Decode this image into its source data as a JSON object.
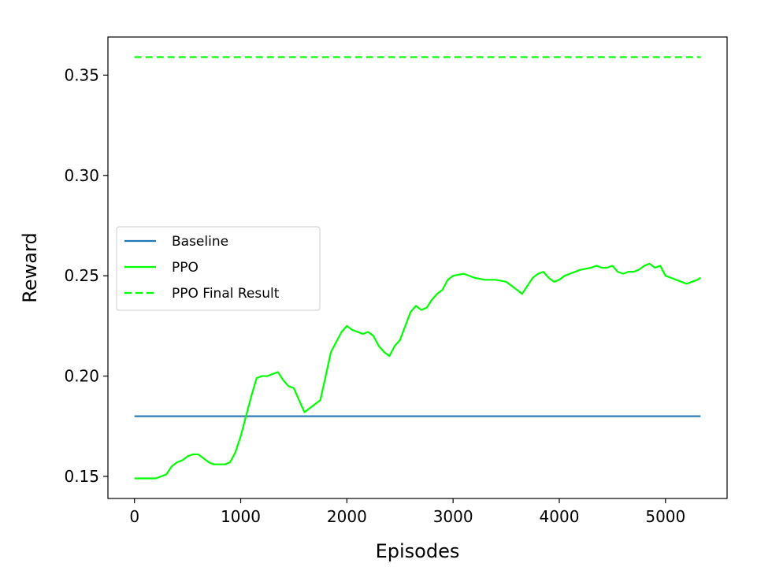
{
  "chart_data": {
    "type": "line",
    "title": "",
    "xlabel": "Episodes",
    "ylabel": "Reward",
    "xlim": [
      -250,
      5580
    ],
    "ylim": [
      0.139,
      0.369
    ],
    "xticks": [
      0,
      1000,
      2000,
      3000,
      4000,
      5000
    ],
    "xtick_labels": [
      "0",
      "1000",
      "2000",
      "3000",
      "4000",
      "5000"
    ],
    "yticks": [
      0.15,
      0.2,
      0.25,
      0.3,
      0.35
    ],
    "ytick_labels": [
      "0.15",
      "0.20",
      "0.25",
      "0.30",
      "0.35"
    ],
    "grid": false,
    "legend_position": "center-left",
    "series": [
      {
        "name": "Baseline",
        "color": "#1f77b4",
        "style": "solid",
        "x": [
          0,
          5330
        ],
        "y": [
          0.18,
          0.18
        ]
      },
      {
        "name": "PPO",
        "color": "#00ff00",
        "style": "solid",
        "x": [
          0,
          100,
          200,
          250,
          300,
          350,
          400,
          450,
          500,
          550,
          600,
          650,
          700,
          750,
          800,
          850,
          900,
          950,
          1000,
          1050,
          1100,
          1150,
          1200,
          1250,
          1300,
          1350,
          1400,
          1450,
          1500,
          1550,
          1600,
          1650,
          1700,
          1750,
          1800,
          1850,
          1900,
          1950,
          2000,
          2050,
          2100,
          2150,
          2200,
          2250,
          2300,
          2350,
          2400,
          2450,
          2500,
          2550,
          2600,
          2650,
          2700,
          2750,
          2800,
          2850,
          2900,
          2950,
          3000,
          3100,
          3200,
          3300,
          3400,
          3500,
          3550,
          3600,
          3650,
          3700,
          3750,
          3800,
          3850,
          3900,
          3950,
          4000,
          4050,
          4100,
          4200,
          4300,
          4350,
          4400,
          4450,
          4500,
          4550,
          4600,
          4650,
          4700,
          4750,
          4800,
          4850,
          4900,
          4950,
          5000,
          5050,
          5100,
          5150,
          5200,
          5250,
          5300,
          5330
        ],
        "y": [
          0.149,
          0.149,
          0.149,
          0.15,
          0.151,
          0.155,
          0.157,
          0.158,
          0.16,
          0.161,
          0.161,
          0.159,
          0.157,
          0.156,
          0.156,
          0.156,
          0.157,
          0.162,
          0.17,
          0.18,
          0.19,
          0.199,
          0.2,
          0.2,
          0.201,
          0.202,
          0.198,
          0.195,
          0.194,
          0.188,
          0.182,
          0.184,
          0.186,
          0.188,
          0.2,
          0.212,
          0.217,
          0.222,
          0.225,
          0.223,
          0.222,
          0.221,
          0.222,
          0.22,
          0.215,
          0.212,
          0.21,
          0.215,
          0.218,
          0.225,
          0.232,
          0.235,
          0.233,
          0.234,
          0.238,
          0.241,
          0.243,
          0.248,
          0.25,
          0.251,
          0.249,
          0.248,
          0.248,
          0.247,
          0.245,
          0.243,
          0.241,
          0.245,
          0.249,
          0.251,
          0.252,
          0.249,
          0.247,
          0.248,
          0.25,
          0.251,
          0.253,
          0.254,
          0.255,
          0.254,
          0.254,
          0.255,
          0.252,
          0.251,
          0.252,
          0.252,
          0.253,
          0.255,
          0.256,
          0.254,
          0.255,
          0.25,
          0.249,
          0.248,
          0.247,
          0.246,
          0.247,
          0.248,
          0.249
        ]
      },
      {
        "name": "PPO Final Result",
        "color": "#00ff00",
        "style": "dashed",
        "x": [
          0,
          5330
        ],
        "y": [
          0.359,
          0.359
        ]
      }
    ]
  }
}
